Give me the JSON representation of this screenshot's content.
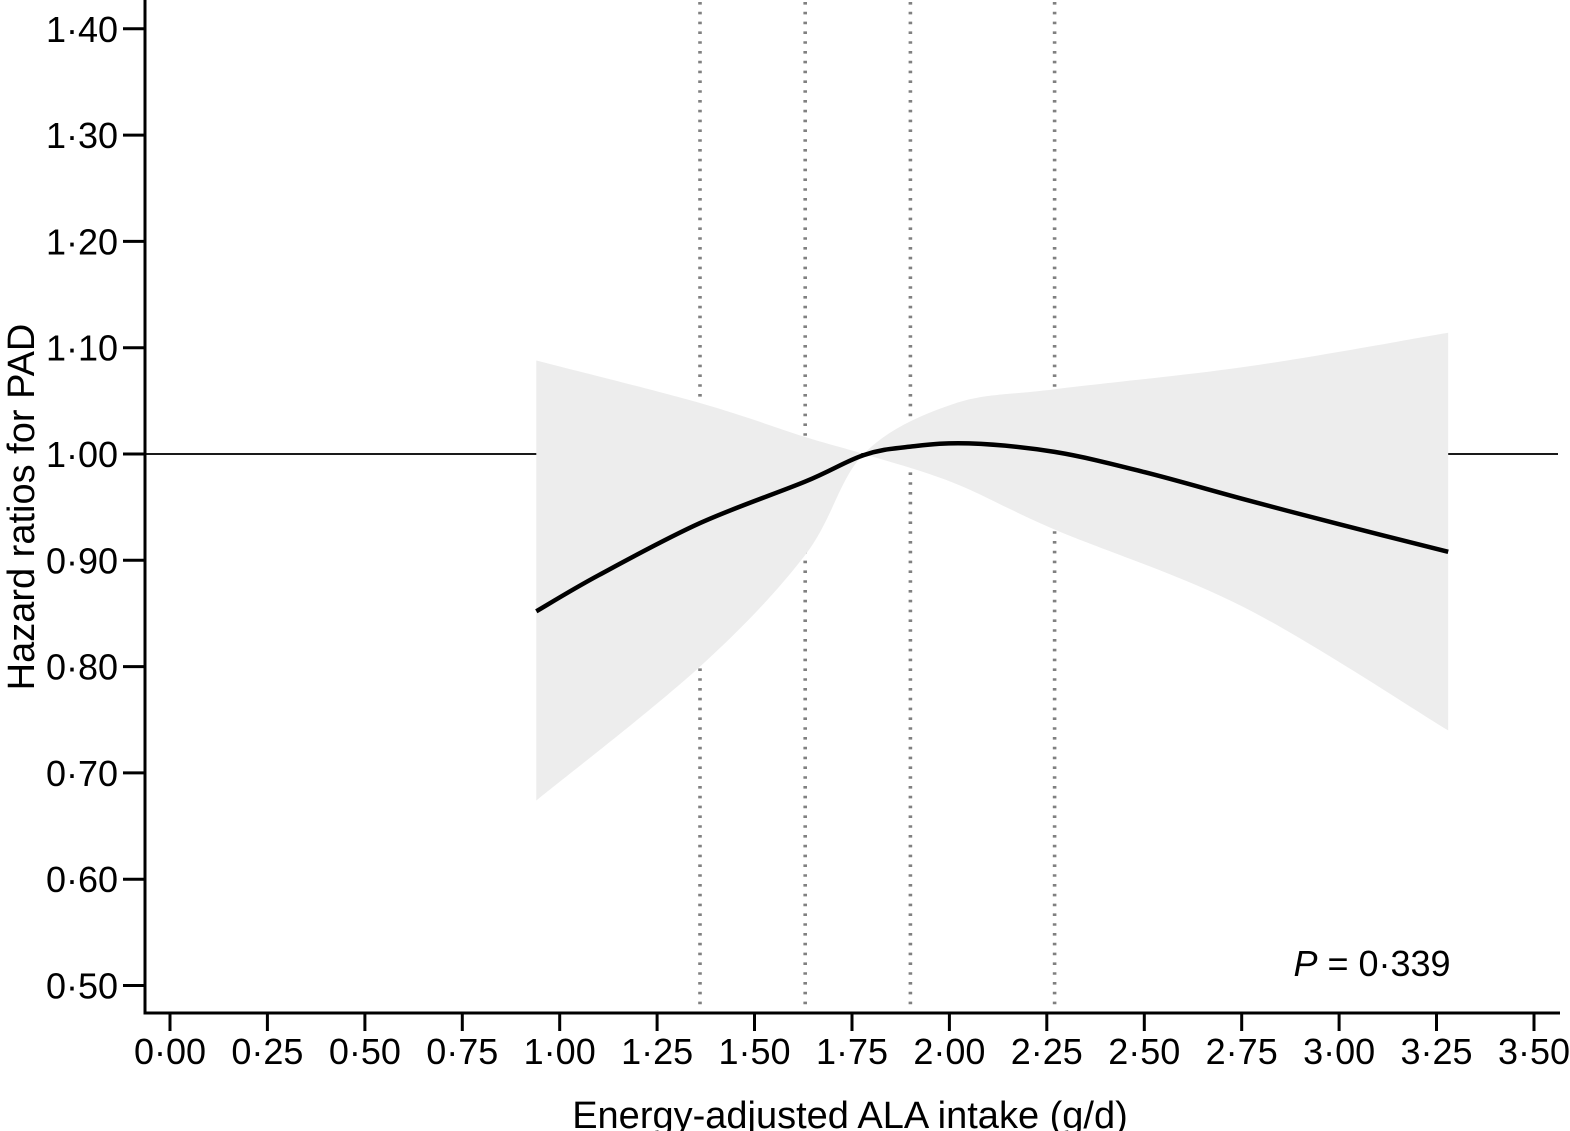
{
  "chart_data": {
    "type": "line",
    "title": "",
    "xlabel": "Energy-adjusted ALA intake (g/d)",
    "ylabel": "Hazard ratios for PAD",
    "xlim": [
      -0.07,
      3.59
    ],
    "ylim": [
      0.475,
      1.428
    ],
    "grid": "none",
    "legend": "none",
    "x_ticks": {
      "values": [
        0.0,
        0.25,
        0.5,
        0.75,
        1.0,
        1.25,
        1.5,
        1.75,
        2.0,
        2.25,
        2.5,
        2.75,
        3.0,
        3.25,
        3.5
      ],
      "labels": [
        "0·00",
        "0·25",
        "0·50",
        "0·75",
        "1·00",
        "1·25",
        "1·50",
        "1·75",
        "2·00",
        "2·25",
        "2·50",
        "2·75",
        "3·00",
        "3·25",
        "3·50"
      ]
    },
    "y_ticks": {
      "values": [
        0.5,
        0.6,
        0.7,
        0.8,
        0.9,
        1.0,
        1.1,
        1.2,
        1.3,
        1.4
      ],
      "labels": [
        "0·50",
        "0·60",
        "0·70",
        "0·80",
        "0·90",
        "1·00",
        "1·10",
        "1·20",
        "1·30",
        "1·40"
      ]
    },
    "reference_line": {
      "y": 1.0
    },
    "quintile_boundary_lines_x": [
      1.36,
      1.63,
      1.9,
      2.27
    ],
    "annotation": {
      "italic": "P",
      "rest": " = 0·339",
      "x": 3.09,
      "y": 0.52
    },
    "series": [
      {
        "name": "hazard_ratio_spline",
        "type": "line",
        "x": [
          0.94,
          1.1,
          1.36,
          1.63,
          1.78,
          1.9,
          2.05,
          2.27,
          2.5,
          2.76,
          3.0,
          3.28
        ],
        "y": [
          0.852,
          0.886,
          0.935,
          0.974,
          0.999,
          1.007,
          1.01,
          1.002,
          0.983,
          0.957,
          0.934,
          0.908
        ]
      },
      {
        "name": "ci_edge_a_upperleft_to_lowerright",
        "type": "band_edge",
        "x": [
          0.94,
          1.36,
          1.63,
          1.78,
          2.01,
          2.27,
          2.76,
          3.28
        ],
        "y": [
          1.088,
          1.048,
          1.016,
          1.0,
          0.973,
          0.929,
          0.855,
          0.74
        ]
      },
      {
        "name": "ci_edge_b_lowerleft_to_upperright",
        "type": "band_edge",
        "x": [
          0.94,
          1.36,
          1.63,
          1.78,
          2.01,
          2.27,
          2.76,
          3.28
        ],
        "y": [
          0.674,
          0.8,
          0.905,
          1.0,
          1.047,
          1.061,
          1.082,
          1.114
        ]
      }
    ],
    "colors": {
      "curve": "#000000",
      "band": "#ededed",
      "reference_line": "#1a1a1a",
      "dotted_lines": "#808080",
      "axis": "#000000",
      "text": "#000000"
    }
  }
}
